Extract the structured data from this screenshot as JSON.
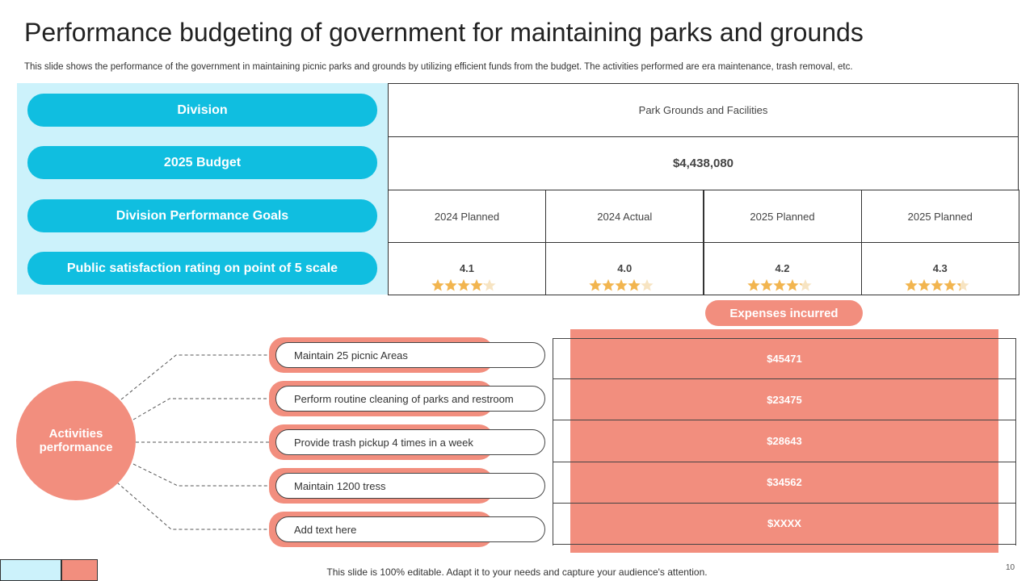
{
  "header": {
    "title": "Performance budgeting of government for maintaining parks and grounds",
    "subtitle": "This slide shows the performance of the government in maintaining picnic parks and grounds by utilizing efficient funds from the budget. The activities performed are era maintenance, trash removal, etc."
  },
  "budget_table": {
    "labels": [
      "Division",
      "2025 Budget",
      "Division Performance Goals",
      "Public satisfaction  rating on point of 5 scale"
    ],
    "division": "Park Grounds and Facilities",
    "budget": "$4,438,080",
    "periods": [
      "2024 Planned",
      "2024 Actual",
      "2025 Planned",
      "2025 Planned"
    ],
    "ratings": [
      "4.1",
      "4.0",
      "4.2",
      "4.3"
    ]
  },
  "activities": {
    "hub": "Activities performance",
    "items": [
      "Maintain 25 picnic Areas",
      "Perform routine cleaning of parks and restroom",
      "Provide  trash pickup 4 times in a week",
      "Maintain 1200 tress",
      "Add text here"
    ]
  },
  "expenses": {
    "heading": "Expenses  incurred",
    "values": [
      "$45471",
      "$23475",
      "$28643",
      "$34562",
      "$XXXX"
    ]
  },
  "footer": {
    "note": "This slide is 100% editable. Adapt it to your needs and capture your audience's attention.",
    "page": "10"
  }
}
